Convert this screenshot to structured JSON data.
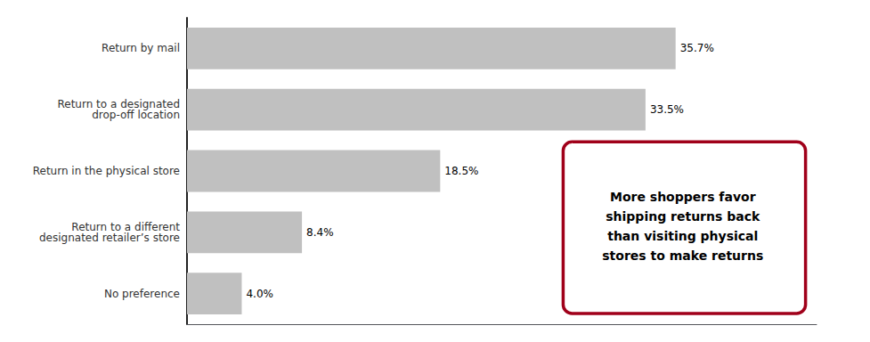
{
  "chart_data": {
    "type": "bar",
    "orientation": "horizontal",
    "categories": [
      "No preference",
      "Return to a different\ndesignated retailer’s store",
      "Return in the physical store",
      "Return to a designated\ndrop-off location",
      "Return by mail"
    ],
    "values": [
      4.0,
      8.4,
      18.5,
      33.5,
      35.7
    ],
    "value_labels": [
      "4.0%",
      "8.4%",
      "18.5%",
      "33.5%",
      "35.7%"
    ],
    "data_labels": true,
    "color": "#C0C0C0",
    "xlim": [
      0,
      46
    ],
    "tick_labels": "y",
    "grid": false,
    "annotation": "More shoppers favor\nshipping returns back\nthan visiting physical\nstores to make returns"
  }
}
